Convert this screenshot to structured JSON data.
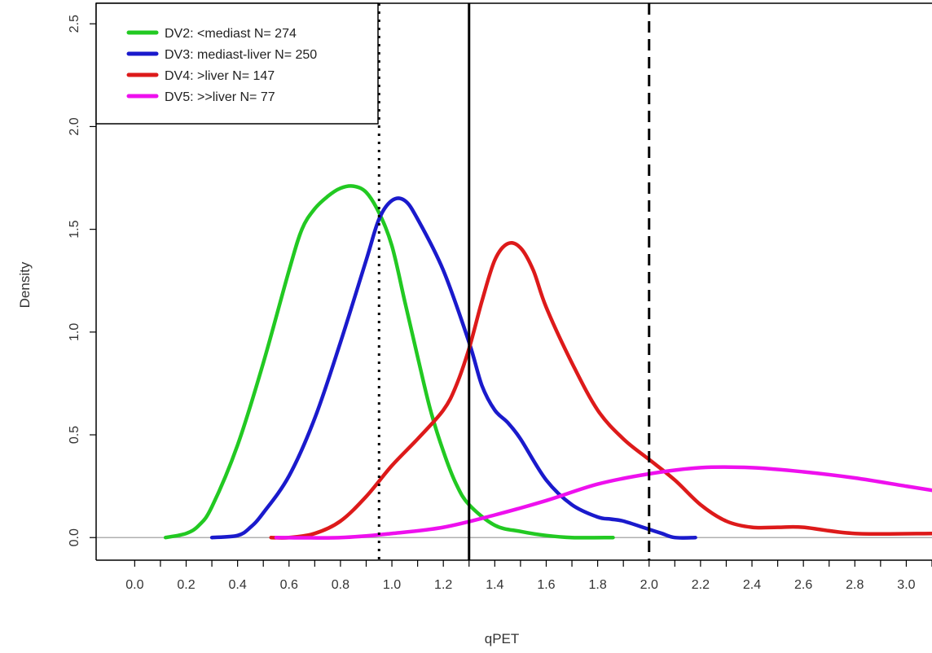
{
  "chart_data": {
    "type": "line",
    "xlabel": "qPET",
    "ylabel": "Density",
    "xlim": [
      -0.15,
      3.1
    ],
    "ylim": [
      -0.11,
      2.6
    ],
    "x_ticks": [
      "0.0",
      "0.2",
      "0.4",
      "0.6",
      "0.8",
      "1.0",
      "1.2",
      "1.4",
      "1.6",
      "1.8",
      "2.0",
      "2.2",
      "2.4",
      "2.6",
      "2.8",
      "3.0"
    ],
    "x_minor_step": 0.1,
    "y_ticks": [
      "0.0",
      "0.5",
      "1.0",
      "1.5",
      "2.0",
      "2.5"
    ],
    "legend_position": "top-left",
    "baseline": {
      "y": 0,
      "color": "#b0b0b0"
    },
    "reference_lines": [
      {
        "x": 0.95,
        "style": "dotted"
      },
      {
        "x": 1.3,
        "style": "solid"
      },
      {
        "x": 2.0,
        "style": "dashed"
      }
    ],
    "series": [
      {
        "name": "DV2: <mediast  N= 274",
        "color": "#22c922",
        "x": [
          0.12,
          0.2,
          0.25,
          0.3,
          0.4,
          0.5,
          0.6,
          0.65,
          0.7,
          0.75,
          0.8,
          0.85,
          0.9,
          0.95,
          1.0,
          1.05,
          1.1,
          1.15,
          1.2,
          1.25,
          1.3,
          1.4,
          1.5,
          1.6,
          1.7,
          1.86
        ],
        "y": [
          0.0,
          0.02,
          0.06,
          0.15,
          0.45,
          0.85,
          1.3,
          1.5,
          1.6,
          1.66,
          1.7,
          1.71,
          1.68,
          1.58,
          1.42,
          1.15,
          0.88,
          0.62,
          0.42,
          0.26,
          0.16,
          0.06,
          0.03,
          0.01,
          0.0,
          0.0
        ]
      },
      {
        "name": "DV3: mediast-liver  N= 250",
        "color": "#1a1acc",
        "x": [
          0.3,
          0.4,
          0.45,
          0.5,
          0.6,
          0.7,
          0.8,
          0.9,
          0.95,
          1.0,
          1.05,
          1.1,
          1.2,
          1.3,
          1.35,
          1.4,
          1.45,
          1.5,
          1.6,
          1.7,
          1.8,
          1.85,
          1.9,
          2.0,
          2.05,
          2.1,
          2.18
        ],
        "y": [
          0.0,
          0.01,
          0.05,
          0.12,
          0.3,
          0.58,
          0.95,
          1.35,
          1.55,
          1.64,
          1.64,
          1.55,
          1.3,
          0.95,
          0.74,
          0.62,
          0.56,
          0.48,
          0.28,
          0.16,
          0.1,
          0.09,
          0.08,
          0.04,
          0.02,
          0.0,
          0.0
        ]
      },
      {
        "name": "DV4: >liver  N= 147",
        "color": "#dd1a1a",
        "x": [
          0.53,
          0.6,
          0.7,
          0.8,
          0.9,
          1.0,
          1.1,
          1.2,
          1.25,
          1.3,
          1.35,
          1.4,
          1.45,
          1.5,
          1.55,
          1.6,
          1.7,
          1.8,
          1.9,
          2.0,
          2.1,
          2.2,
          2.3,
          2.4,
          2.5,
          2.6,
          2.8,
          3.1
        ],
        "y": [
          0.0,
          0.0,
          0.02,
          0.08,
          0.2,
          0.35,
          0.48,
          0.62,
          0.74,
          0.92,
          1.15,
          1.35,
          1.43,
          1.41,
          1.3,
          1.12,
          0.85,
          0.62,
          0.48,
          0.38,
          0.28,
          0.16,
          0.08,
          0.05,
          0.05,
          0.05,
          0.02,
          0.02
        ]
      },
      {
        "name": "DV5: >>liver  N= 77",
        "color": "#ee10ee",
        "x": [
          0.55,
          0.8,
          1.0,
          1.2,
          1.4,
          1.6,
          1.8,
          2.0,
          2.2,
          2.4,
          2.6,
          2.8,
          3.0,
          3.1
        ],
        "y": [
          0.0,
          0.0,
          0.02,
          0.05,
          0.11,
          0.18,
          0.26,
          0.31,
          0.34,
          0.34,
          0.32,
          0.29,
          0.25,
          0.23
        ]
      }
    ]
  }
}
